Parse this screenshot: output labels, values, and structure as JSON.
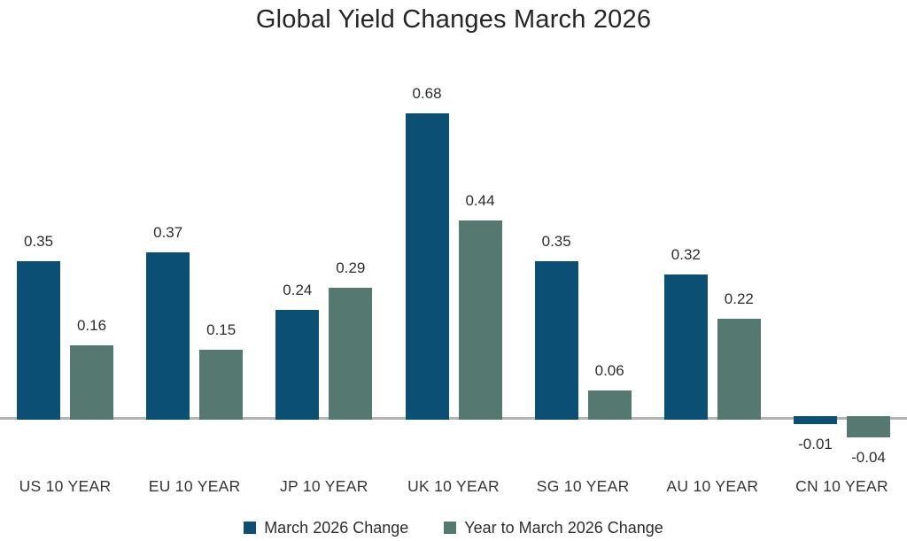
{
  "chart_data": {
    "type": "bar",
    "title": "Global Yield Changes March 2026",
    "categories": [
      "US 10 YEAR",
      "EU 10 YEAR",
      "JP 10 YEAR",
      "UK 10 YEAR",
      "SG 10 YEAR",
      "AU 10 YEAR",
      "CN 10 YEAR"
    ],
    "series": [
      {
        "name": "March 2026 Change",
        "color": "#0b5074",
        "values": [
          0.35,
          0.37,
          0.24,
          0.68,
          0.35,
          0.32,
          -0.01
        ],
        "labels": [
          "0.35",
          "0.37",
          "0.24",
          "0.68",
          "0.35",
          "0.32",
          "-0.01"
        ]
      },
      {
        "name": "Year to March 2026 Change",
        "color": "#557971",
        "values": [
          0.16,
          0.15,
          0.29,
          0.44,
          0.06,
          0.22,
          -0.04
        ],
        "labels": [
          "0.16",
          "0.15",
          "0.29",
          "0.44",
          "0.06",
          "0.22",
          "-0.04"
        ]
      }
    ],
    "xlabel": "",
    "ylabel": "",
    "ylim": [
      -0.1,
      0.8
    ],
    "grid": false,
    "legend_position": "bottom",
    "axis_line_color": "#b3b3b3",
    "label_color": "#2d2d2d"
  }
}
